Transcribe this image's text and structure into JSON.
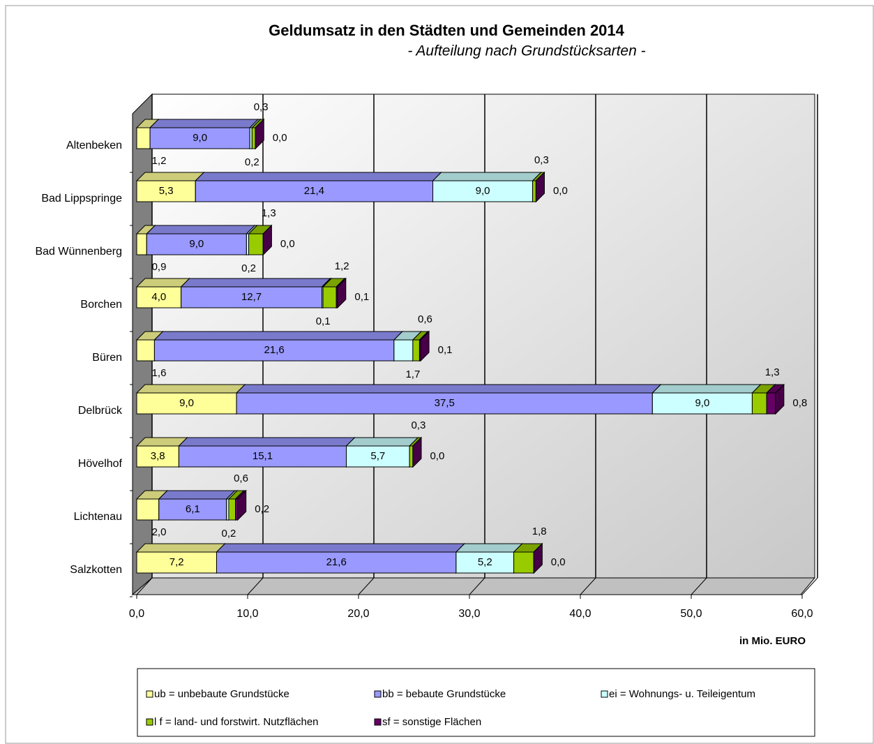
{
  "chart_data": {
    "type": "bar",
    "orientation": "horizontal",
    "stacked": true,
    "title": "Geldumsatz in den Städten und Gemeinden 2014",
    "subtitle": "- Aufteilung nach Grundstücksarten -",
    "x_label": "in Mio. EURO",
    "categories": [
      "Altenbeken",
      "Bad Lippspringe",
      "Bad Wünnenberg",
      "Borchen",
      "Büren",
      "Delbrück",
      "Hövelhof",
      "Lichtenau",
      "Salzkotten"
    ],
    "series": [
      {
        "name": "ub = unbebaute Grundstücke",
        "color": "#ffff99",
        "values": [
          1.2,
          5.3,
          0.9,
          4.0,
          1.6,
          9.0,
          3.8,
          2.0,
          7.2
        ],
        "value_labels": [
          "1,2",
          "5,3",
          "0,9",
          "4,0",
          "1,6",
          "9,0",
          "3,8",
          "2,0",
          "7,2"
        ]
      },
      {
        "name": "bb = bebaute Grundstücke",
        "color": "#9999ff",
        "values": [
          9.0,
          21.4,
          9.0,
          12.7,
          21.6,
          37.5,
          15.1,
          6.1,
          21.6
        ],
        "value_labels": [
          "9,0",
          "21,4",
          "9,0",
          "12,7",
          "21,6",
          "37,5",
          "15,1",
          "6,1",
          "21,6"
        ]
      },
      {
        "name": "ei = Wohnungs- u. Teileigentum",
        "color": "#ccffff",
        "values": [
          0.2,
          9.0,
          0.2,
          0.1,
          1.7,
          9.0,
          5.7,
          0.2,
          5.2
        ],
        "value_labels": [
          "0,2",
          "9,0",
          "0,2",
          "0,1",
          "1,7",
          "9,0",
          "5,7",
          "0,2",
          "5,2"
        ]
      },
      {
        "name": "l f = land- und forstwirt. Nutzflächen",
        "color": "#99cc00",
        "values": [
          0.3,
          0.3,
          1.3,
          1.2,
          0.6,
          1.3,
          0.3,
          0.6,
          1.8
        ],
        "value_labels": [
          "0,3",
          "0,3",
          "1,3",
          "1,2",
          "0,6",
          "1,3",
          "0,3",
          "0,6",
          "1,8"
        ]
      },
      {
        "name": "sf = sonstige Flächen",
        "color": "#660066",
        "values": [
          0.0,
          0.0,
          0.0,
          0.1,
          0.1,
          0.8,
          0.0,
          0.2,
          0.0
        ],
        "value_labels": [
          "0,0",
          "0,0",
          "0,0",
          "0,1",
          "0,1",
          "0,8",
          "0,0",
          "0,2",
          "0,0"
        ]
      }
    ],
    "xlim": [
      0,
      60
    ],
    "xticks": [
      {
        "value": 0,
        "label": "0,0"
      },
      {
        "value": 10,
        "label": "10,0"
      },
      {
        "value": 20,
        "label": "20,0"
      },
      {
        "value": 30,
        "label": "30,0"
      },
      {
        "value": 40,
        "label": "40,0"
      },
      {
        "value": 50,
        "label": "50,0"
      },
      {
        "value": 60,
        "label": "60,0"
      }
    ],
    "grid": true,
    "legend": "bottom"
  }
}
